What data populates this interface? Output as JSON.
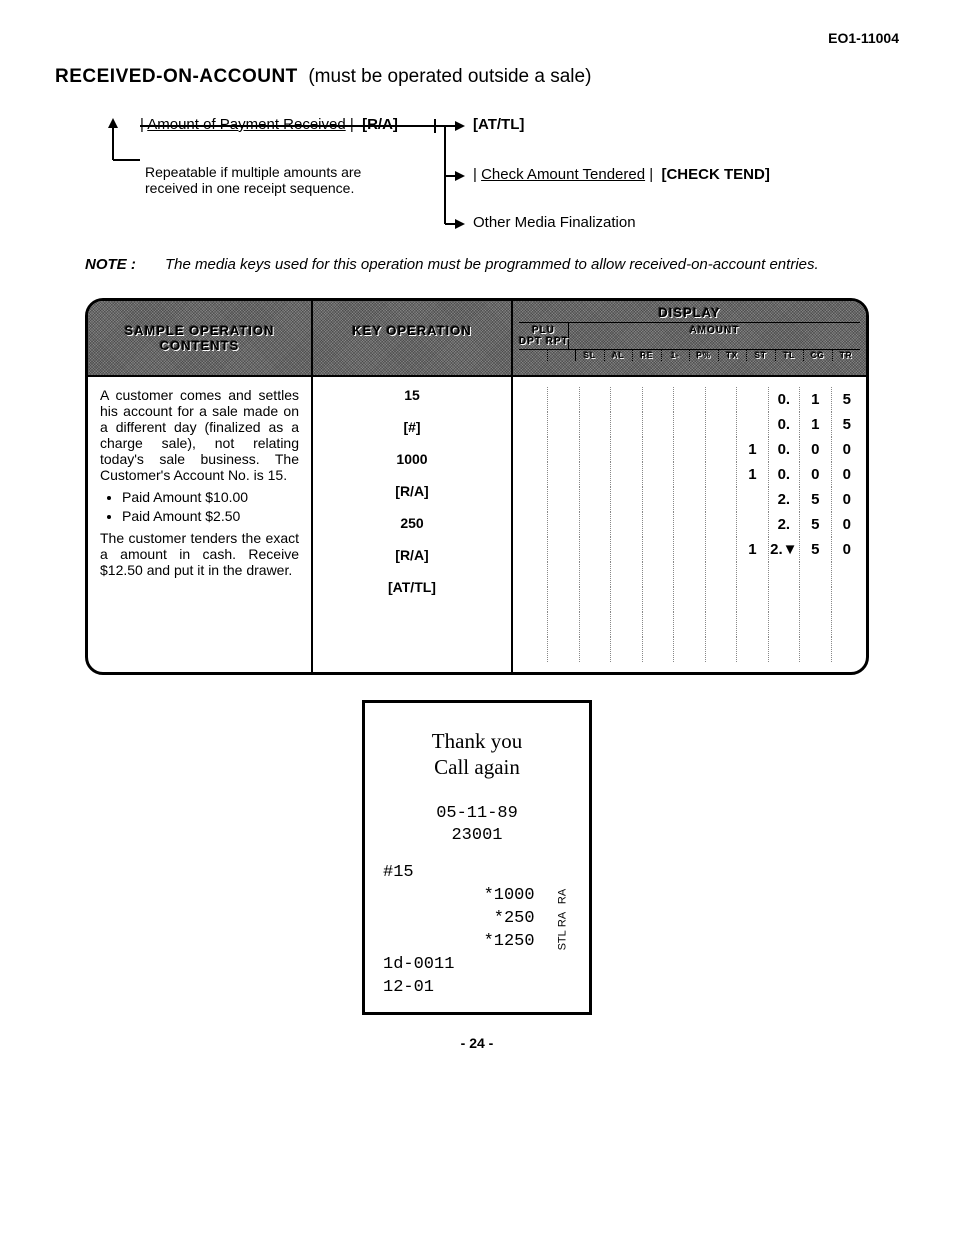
{
  "doc_id": "EO1-11004",
  "title_bold": "RECEIVED-ON-ACCOUNT",
  "title_rest": "(must be operated outside a sale)",
  "flow": {
    "step1_label": "Amount of Payment Received",
    "step1_key": "[R/A]",
    "branch1_key": "[AT/TL]",
    "branch2_label": "Check Amount Tendered",
    "branch2_key": "[CHECK TEND]",
    "branch3": "Other Media Finalization",
    "repeat_note": "Repeatable if multiple amounts are received in one receipt sequence."
  },
  "note": {
    "label": "NOTE :",
    "text": "The media keys used for this operation must be programmed to allow received-on-account entries."
  },
  "table": {
    "hdr_col1": "SAMPLE OPERATION CONTENTS",
    "hdr_col2": "KEY OPERATION",
    "hdr_col3": "DISPLAY",
    "hdr_plu": "PLU",
    "hdr_dpt": "DPT",
    "hdr_rpt": "RPT",
    "hdr_amount": "AMOUNT",
    "sublabels": [
      "",
      "",
      "SL",
      "AL",
      "RE",
      "1-",
      "P%",
      "TX",
      "ST",
      "TL",
      "CG",
      "TR"
    ],
    "contents_p1": "A customer comes and settles his account for a sale made on a different day (finalized as a charge sale), not relating today's sale business. The Customer's Account No. is 15.",
    "contents_b1": "Paid Amount $10.00",
    "contents_b2": "Paid Amount $2.50",
    "contents_p2": "The customer tenders the exact a amount in cash. Receive $12.50 and put it in the drawer.",
    "key_ops": [
      "15",
      "[#]",
      "1000",
      "[R/A]",
      "250",
      "[R/A]",
      "[AT/TL]"
    ],
    "display_rows": [
      [
        "",
        "",
        "",
        "",
        "",
        "",
        "",
        "",
        "0.",
        "1",
        "5"
      ],
      [
        "",
        "",
        "",
        "",
        "",
        "",
        "",
        "",
        "0.",
        "1",
        "5"
      ],
      [
        "",
        "",
        "",
        "",
        "",
        "",
        "",
        "1",
        "0.",
        "0",
        "0"
      ],
      [
        "",
        "",
        "",
        "",
        "",
        "",
        "",
        "1",
        "0.",
        "0",
        "0"
      ],
      [
        "",
        "",
        "",
        "",
        "",
        "",
        "",
        "",
        "2.",
        "5",
        "0"
      ],
      [
        "",
        "",
        "",
        "",
        "",
        "",
        "",
        "",
        "2.",
        "5",
        "0"
      ],
      [
        "",
        "",
        "",
        "",
        "",
        "",
        "",
        "1",
        "2.▼",
        "5",
        "0"
      ]
    ]
  },
  "receipt": {
    "thank": "Thank you",
    "call": "Call again",
    "date": "05-11-89",
    "num": "23001",
    "acct": "#15",
    "l1_amt": "*1000",
    "l1_tag": "RA",
    "l2_amt": "*250",
    "l2_tag": "RA",
    "l3_amt": "*1250",
    "l3_tag": "STL",
    "l4": "1d-0011",
    "l5": "12-01"
  },
  "page": "- 24 -"
}
